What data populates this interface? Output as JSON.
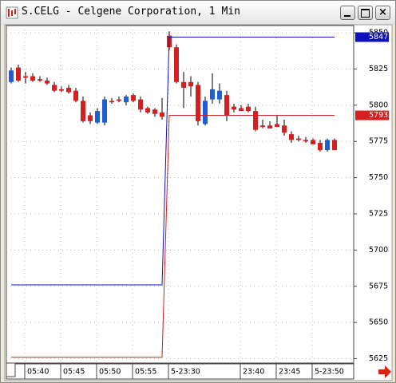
{
  "window_title": "S.CELG - Celgene Corporation, 1 Min",
  "chart_data": {
    "type": "candlestick",
    "categories": [
      null,
      null,
      "05:40",
      null,
      null,
      null,
      null,
      "05:45",
      null,
      null,
      null,
      null,
      "05:50",
      null,
      null,
      null,
      null,
      "05:55",
      null,
      null,
      null,
      null,
      "5-23:30",
      null,
      null,
      null,
      null,
      null,
      null,
      null,
      null,
      null,
      "23:40",
      null,
      null,
      null,
      null,
      "23:45",
      null,
      null,
      null,
      null,
      "5-23:50",
      null,
      null,
      null
    ],
    "open": [
      5816,
      5826,
      5820,
      5820,
      5818,
      5817,
      5814,
      5811,
      5812,
      5810,
      5803,
      5793,
      5788,
      5788,
      5803,
      5804,
      5802,
      5807,
      5804,
      5798,
      5797,
      5795,
      5848,
      5840,
      5816,
      5816,
      5814,
      5787,
      5804,
      5804,
      5807,
      5799,
      5798,
      5799,
      5796,
      5786,
      5786,
      5787,
      5786,
      5780,
      5777,
      5776,
      5776,
      5774,
      5769,
      5776
    ],
    "high": [
      5826,
      5828,
      5823,
      5822,
      5820,
      5819,
      5816,
      5813,
      5814,
      5812,
      5806,
      5795,
      5798,
      5806,
      5805,
      5806,
      5807,
      5808,
      5806,
      5799,
      5798,
      5805,
      5851,
      5842,
      5823,
      5820,
      5816,
      5806,
      5822,
      5815,
      5810,
      5801,
      5800,
      5801,
      5799,
      5790,
      5789,
      5793,
      5790,
      5782,
      5779,
      5778,
      5777,
      5776,
      5777,
      5777
    ],
    "low": [
      5815,
      5816,
      5815,
      5816,
      5816,
      5814,
      5809,
      5809,
      5808,
      5802,
      5788,
      5787,
      5787,
      5786,
      5801,
      5802,
      5800,
      5802,
      5795,
      5794,
      5792,
      5790,
      5838,
      5815,
      5798,
      5806,
      5786,
      5786,
      5801,
      5801,
      5789,
      5795,
      5796,
      5795,
      5782,
      5784,
      5784,
      5785,
      5779,
      5774,
      5775,
      5774,
      5773,
      5768,
      5768,
      5769
    ],
    "close": [
      5824,
      5817,
      5819,
      5817,
      5817,
      5815,
      5810,
      5810,
      5809,
      5803,
      5789,
      5789,
      5796,
      5804,
      5802,
      5803,
      5806,
      5803,
      5797,
      5795,
      5794,
      5792,
      5840,
      5816,
      5812,
      5813,
      5789,
      5803,
      5811,
      5810,
      5793,
      5797,
      5796,
      5796,
      5783,
      5785,
      5784,
      5785,
      5781,
      5776,
      5776,
      5775,
      5773,
      5769,
      5776,
      5769
    ],
    "up_color": "#1f5fd6",
    "down_color": "#d42020",
    "series": [
      {
        "color": "#1010c0",
        "values": [
          5676,
          5676,
          5676,
          5676,
          5676,
          5676,
          5676,
          5676,
          5676,
          5676,
          5676,
          5676,
          5676,
          5676,
          5676,
          5676,
          5676,
          5676,
          5676,
          5676,
          5676,
          5676,
          5847,
          5847,
          5847,
          5847,
          5847,
          5847,
          5847,
          5847,
          5847,
          5847,
          5847,
          5847,
          5847,
          5847,
          5847,
          5847,
          5847,
          5847,
          5847,
          5847,
          5847,
          5847,
          5847,
          5847
        ]
      },
      {
        "color": "#d42020",
        "values": [
          5626,
          5626,
          5626,
          5626,
          5626,
          5626,
          5626,
          5626,
          5626,
          5626,
          5626,
          5626,
          5626,
          5626,
          5626,
          5626,
          5626,
          5626,
          5626,
          5626,
          5626,
          5626,
          5793,
          5793,
          5793,
          5793,
          5793,
          5793,
          5793,
          5793,
          5793,
          5793,
          5793,
          5793,
          5793,
          5793,
          5793,
          5793,
          5793,
          5793,
          5793,
          5793,
          5793,
          5793,
          5793,
          5793
        ]
      }
    ],
    "ylim": [
      5622,
      5855
    ],
    "yticks": [
      5625,
      5650,
      5675,
      5700,
      5725,
      5750,
      5775,
      5800,
      5825,
      5850
    ],
    "grid": true
  }
}
